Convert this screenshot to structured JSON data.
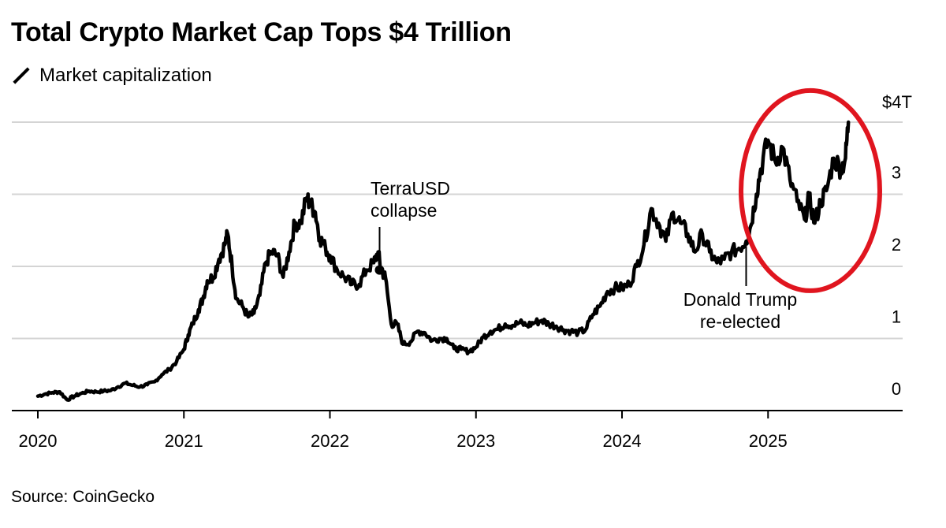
{
  "header": {
    "title": "Total Crypto Market Cap Tops $4 Trillion",
    "legend_label": "Market capitalization"
  },
  "footer": {
    "source": "Source: CoinGecko"
  },
  "chart_data": {
    "type": "line",
    "title": "Total Crypto Market Cap Tops $4 Trillion",
    "xlabel": "",
    "ylabel": "",
    "xlim": [
      2020.0,
      2025.9
    ],
    "ylim": [
      0,
      4.0
    ],
    "grid": true,
    "y_ticks": [
      0,
      1,
      2,
      3,
      4
    ],
    "y_tick_labels": [
      "0",
      "1",
      "2",
      "3",
      "$4T"
    ],
    "x_ticks": [
      2020,
      2021,
      2022,
      2023,
      2024,
      2025
    ],
    "x_tick_labels": [
      "2020",
      "2021",
      "2022",
      "2023",
      "2024",
      "2025"
    ],
    "series": [
      {
        "name": "Market capitalization",
        "color": "#000000",
        "x": [
          2020.0,
          2020.05,
          2020.1,
          2020.15,
          2020.2,
          2020.25,
          2020.3,
          2020.35,
          2020.4,
          2020.45,
          2020.5,
          2020.55,
          2020.6,
          2020.65,
          2020.7,
          2020.75,
          2020.8,
          2020.85,
          2020.9,
          2020.95,
          2021.0,
          2021.03,
          2021.06,
          2021.1,
          2021.13,
          2021.16,
          2021.2,
          2021.24,
          2021.28,
          2021.3,
          2021.33,
          2021.36,
          2021.4,
          2021.44,
          2021.48,
          2021.52,
          2021.56,
          2021.6,
          2021.64,
          2021.68,
          2021.72,
          2021.76,
          2021.8,
          2021.84,
          2021.87,
          2021.9,
          2021.93,
          2021.97,
          2022.0,
          2022.05,
          2022.1,
          2022.15,
          2022.2,
          2022.25,
          2022.3,
          2022.33,
          2022.35,
          2022.38,
          2022.42,
          2022.46,
          2022.5,
          2022.55,
          2022.6,
          2022.65,
          2022.7,
          2022.75,
          2022.8,
          2022.85,
          2022.9,
          2022.95,
          2023.0,
          2023.05,
          2023.1,
          2023.15,
          2023.2,
          2023.25,
          2023.3,
          2023.35,
          2023.4,
          2023.45,
          2023.5,
          2023.55,
          2023.6,
          2023.65,
          2023.7,
          2023.75,
          2023.8,
          2023.85,
          2023.9,
          2023.95,
          2024.0,
          2024.05,
          2024.1,
          2024.15,
          2024.2,
          2024.25,
          2024.3,
          2024.35,
          2024.4,
          2024.45,
          2024.5,
          2024.55,
          2024.6,
          2024.65,
          2024.7,
          2024.75,
          2024.8,
          2024.85,
          2024.88,
          2024.92,
          2024.95,
          2025.0,
          2025.05,
          2025.1,
          2025.15,
          2025.2,
          2025.25,
          2025.28,
          2025.32,
          2025.36,
          2025.4,
          2025.45,
          2025.5,
          2025.53,
          2025.55
        ],
        "values": [
          0.2,
          0.23,
          0.25,
          0.26,
          0.15,
          0.2,
          0.24,
          0.27,
          0.26,
          0.27,
          0.28,
          0.33,
          0.38,
          0.35,
          0.33,
          0.36,
          0.4,
          0.5,
          0.57,
          0.68,
          0.85,
          1.05,
          1.2,
          1.4,
          1.55,
          1.8,
          1.85,
          2.1,
          2.3,
          2.45,
          2.0,
          1.55,
          1.45,
          1.3,
          1.35,
          1.6,
          2.05,
          2.2,
          2.15,
          1.85,
          2.2,
          2.6,
          2.6,
          2.95,
          2.85,
          2.75,
          2.4,
          2.25,
          2.15,
          1.95,
          1.85,
          1.75,
          1.75,
          1.95,
          2.05,
          2.2,
          1.95,
          1.85,
          1.2,
          1.2,
          0.92,
          0.95,
          1.1,
          1.08,
          0.97,
          1.0,
          1.0,
          0.86,
          0.85,
          0.82,
          0.88,
          1.02,
          1.1,
          1.13,
          1.2,
          1.18,
          1.22,
          1.18,
          1.22,
          1.25,
          1.2,
          1.17,
          1.12,
          1.1,
          1.08,
          1.12,
          1.33,
          1.45,
          1.65,
          1.7,
          1.7,
          1.75,
          2.0,
          2.3,
          2.8,
          2.6,
          2.35,
          2.75,
          2.6,
          2.45,
          2.2,
          2.45,
          2.2,
          2.05,
          2.1,
          2.2,
          2.25,
          2.35,
          2.55,
          3.0,
          3.35,
          3.75,
          3.45,
          3.65,
          3.2,
          2.9,
          2.65,
          2.95,
          2.6,
          2.9,
          3.05,
          3.5,
          3.35,
          3.5,
          4.0
        ]
      }
    ],
    "annotations": [
      {
        "line1": "TerraUSD",
        "line2": "collapse",
        "x": 2022.34,
        "y": 1.95
      },
      {
        "line1": "Donald Trump",
        "line2": "re-elected",
        "x": 2024.85,
        "y": 2.3
      }
    ],
    "highlight": {
      "shape": "ellipse",
      "color": "#e0151f",
      "x_center": 2025.29,
      "y_center": 3.05
    }
  }
}
